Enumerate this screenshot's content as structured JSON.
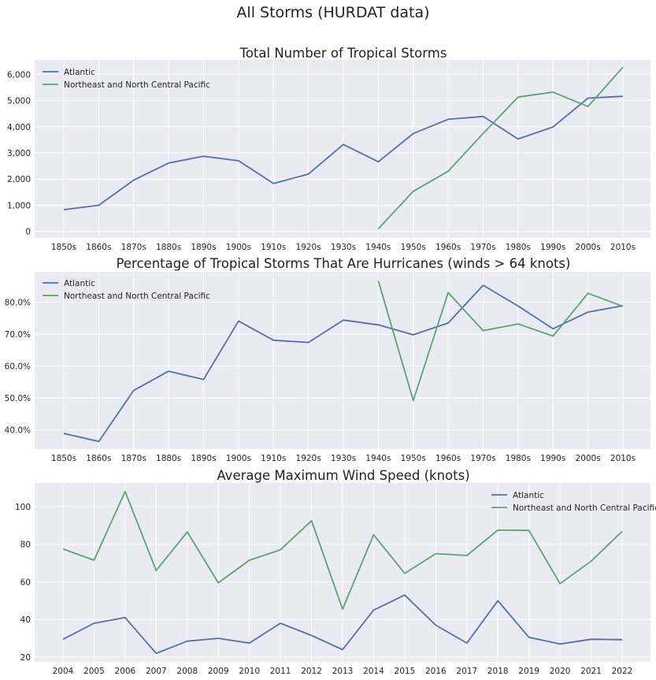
{
  "figure": {
    "title": "All Storms (HURDAT data)"
  },
  "colors": {
    "atlantic": "#4c72b0",
    "pacific": "#55a868",
    "background": "#eaeaf2",
    "grid": "#ffffff"
  },
  "chart_data": [
    {
      "type": "line",
      "title": "Total Number of Tropical Storms",
      "xlabel": "",
      "ylabel": "",
      "categories": [
        "1850s",
        "1860s",
        "1870s",
        "1880s",
        "1890s",
        "1900s",
        "1910s",
        "1920s",
        "1930s",
        "1940s",
        "1950s",
        "1960s",
        "1970s",
        "1980s",
        "1990s",
        "2000s",
        "2010s"
      ],
      "yticks": [
        0,
        1000,
        2000,
        3000,
        4000,
        5000,
        6000
      ],
      "ytick_labels": [
        "0",
        "1,000",
        "2,000",
        "3,000",
        "4,000",
        "5,000",
        "6,000"
      ],
      "ylim": [
        -250,
        6550
      ],
      "grid": true,
      "legend": "upper-left",
      "series": [
        {
          "name": "Atlantic",
          "color_key": "atlantic",
          "values": [
            830,
            1000,
            1960,
            2610,
            2870,
            2700,
            1830,
            2190,
            3320,
            2660,
            3740,
            4280,
            4390,
            3530,
            3990,
            5090,
            5160
          ]
        },
        {
          "name": "Northeast and North Central Pacific",
          "color_key": "pacific",
          "values": [
            null,
            null,
            null,
            null,
            null,
            null,
            null,
            null,
            null,
            100,
            1530,
            2300,
            3740,
            5130,
            5320,
            4770,
            6270
          ]
        }
      ]
    },
    {
      "type": "line",
      "title": "Percentage of Tropical Storms That Are Hurricanes (winds > 64 knots)",
      "xlabel": "",
      "ylabel": "",
      "categories": [
        "1850s",
        "1860s",
        "1870s",
        "1880s",
        "1890s",
        "1900s",
        "1910s",
        "1920s",
        "1930s",
        "1940s",
        "1950s",
        "1960s",
        "1970s",
        "1980s",
        "1990s",
        "2000s",
        "2010s"
      ],
      "yticks": [
        40,
        50,
        60,
        70,
        80
      ],
      "ytick_labels": [
        "40.0%",
        "50.0%",
        "60.0%",
        "70.0%",
        "80.0%"
      ],
      "ylim": [
        34,
        89.5
      ],
      "grid": true,
      "legend": "upper-left",
      "series": [
        {
          "name": "Atlantic",
          "color_key": "atlantic",
          "values": [
            38.9,
            36.4,
            52.4,
            58.4,
            55.8,
            74.1,
            68.1,
            67.4,
            74.4,
            72.9,
            69.8,
            73.5,
            85.3,
            78.8,
            71.7,
            76.9,
            78.9
          ]
        },
        {
          "name": "Northeast and North Central Pacific",
          "color_key": "pacific",
          "values": [
            null,
            null,
            null,
            null,
            null,
            null,
            null,
            null,
            null,
            86.7,
            49.2,
            83.0,
            71.1,
            73.2,
            69.4,
            82.8,
            78.7
          ]
        }
      ]
    },
    {
      "type": "line",
      "title": "Average Maximum Wind Speed (knots)",
      "xlabel": "",
      "ylabel": "",
      "categories": [
        "2004",
        "2005",
        "2006",
        "2007",
        "2008",
        "2009",
        "2010",
        "2011",
        "2012",
        "2013",
        "2014",
        "2015",
        "2016",
        "2017",
        "2018",
        "2019",
        "2020",
        "2021",
        "2022"
      ],
      "yticks": [
        20,
        40,
        60,
        80,
        100
      ],
      "ytick_labels": [
        "20",
        "40",
        "60",
        "80",
        "100"
      ],
      "ylim": [
        17.5,
        112.5
      ],
      "grid": true,
      "legend": "upper-right",
      "series": [
        {
          "name": "Atlantic",
          "color_key": "atlantic",
          "values": [
            29.5,
            38,
            41,
            22,
            28.5,
            30,
            27.5,
            38,
            31.5,
            24,
            45,
            53,
            37,
            27.5,
            50,
            30.5,
            27,
            29.5,
            29.3
          ]
        },
        {
          "name": "Northeast and North Central Pacific",
          "color_key": "pacific",
          "values": [
            77.5,
            71.5,
            108,
            66,
            86.5,
            59.5,
            71.5,
            77,
            92.5,
            45.5,
            85,
            64.5,
            75,
            74,
            87.5,
            87.3,
            59,
            71,
            86.8
          ]
        }
      ]
    }
  ]
}
